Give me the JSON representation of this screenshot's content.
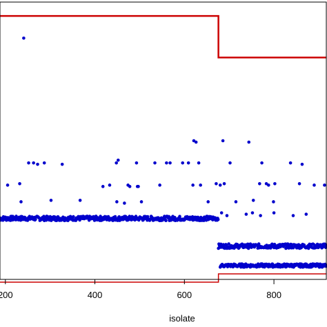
{
  "chart_data": {
    "type": "scatter",
    "xlabel": "isolate",
    "ylabel": "",
    "title": "",
    "xlim": [
      188,
      917
    ],
    "ylim": [
      0,
      100
    ],
    "x_ticks": [
      "200",
      "400",
      "600",
      "800"
    ],
    "grid": false,
    "colors": {
      "points": "#0000cc",
      "upper_line": "#cc0000",
      "lower_line": "#cc0000",
      "frame": "#000000"
    },
    "upper_step_line": {
      "x": [
        188,
        676,
        676,
        917
      ],
      "y": [
        95,
        95,
        80,
        80
      ]
    },
    "lower_step_line": {
      "x": [
        188,
        676,
        676,
        917
      ],
      "y": [
        -1,
        -1,
        2,
        2
      ]
    },
    "scatter_points": {
      "x": [
        241,
        205,
        232,
        252,
        263,
        272,
        287,
        327,
        235,
        302,
        367,
        418,
        433,
        448,
        452,
        478,
        493,
        497,
        534,
        560,
        568,
        449,
        466,
        474,
        495,
        504,
        545,
        596,
        609,
        619,
        621,
        626,
        636,
        632,
        686,
        653,
        671,
        680,
        689,
        702,
        715,
        744,
        754,
        773,
        783,
        788,
        799,
        768,
        802,
        837,
        857,
        863,
        890,
        913,
        683,
        695,
        738,
        752,
        770,
        800,
        843,
        872
      ],
      "y": [
        87,
        34,
        34.5,
        42,
        42,
        41.5,
        42,
        41.5,
        28,
        28.5,
        28.5,
        33.5,
        34,
        42,
        43,
        33.5,
        42,
        33.5,
        42,
        42,
        42,
        28,
        27.5,
        34,
        33.5,
        28,
        34,
        42,
        42,
        34,
        50,
        49.5,
        34,
        42,
        50,
        28,
        34.5,
        34,
        34.5,
        42,
        28,
        49.5,
        28.5,
        42,
        34.5,
        34,
        28,
        34.5,
        34.5,
        42,
        34.5,
        41.5,
        34,
        34,
        24,
        23,
        23.5,
        24,
        23,
        24,
        23,
        23.5
      ]
    },
    "dense_bands": [
      {
        "x_from": 188,
        "x_to": 676,
        "y": 22,
        "spread": 0.8
      },
      {
        "x_from": 676,
        "x_to": 917,
        "y": 12,
        "spread": 0.8
      },
      {
        "x_from": 680,
        "x_to": 917,
        "y": 5,
        "spread": 0.6
      }
    ]
  }
}
